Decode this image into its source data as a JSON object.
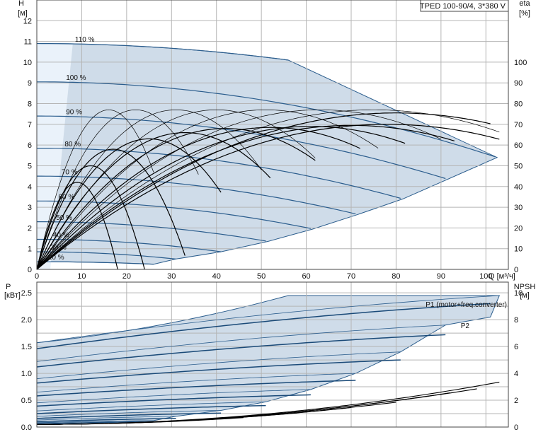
{
  "chart_data": [
    {
      "type": "line",
      "panel": "head",
      "title": "TPED 100-90/4, 3*380 V",
      "ylabel": "H",
      "yunit": "[м]",
      "y2label": "eta",
      "y2unit": "[%]",
      "xlabel": "Q [м³/ч]",
      "xlim": [
        0,
        105
      ],
      "ylim": [
        0,
        13
      ],
      "y2lim": [
        0,
        130
      ],
      "xticks": [
        "0",
        "10",
        "20",
        "30",
        "40",
        "50",
        "60",
        "70",
        "80",
        "90",
        "100"
      ],
      "yticks": [
        "0",
        "1",
        "2",
        "3",
        "4",
        "5",
        "6",
        "7",
        "8",
        "9",
        "10",
        "11",
        "12"
      ],
      "y2ticks": [
        "0",
        "10",
        "20",
        "30",
        "40",
        "50",
        "60",
        "70",
        "80",
        "90",
        "100"
      ],
      "grid": true,
      "envelope": {
        "qmax_at_110": 56,
        "qend": 102.5,
        "hend": 5.4
      },
      "speed_curves": [
        {
          "name": "110 %",
          "h0": 10.9,
          "qmax": 56,
          "hend": 10.1
        },
        {
          "name": "100 %",
          "h0": 9.05,
          "qmax": 102.5,
          "hend": 5.4
        },
        {
          "name": "90 %",
          "h0": 7.4,
          "qmax": 91.5,
          "hend": 4.35
        },
        {
          "name": "80 %",
          "h0": 5.85,
          "qmax": 81.5,
          "hend": 3.4
        },
        {
          "name": "70 %",
          "h0": 4.5,
          "qmax": 71.5,
          "hend": 2.65
        },
        {
          "name": "60 %",
          "h0": 3.3,
          "qmax": 61.5,
          "hend": 1.95
        },
        {
          "name": "50 %",
          "h0": 2.3,
          "qmax": 51.5,
          "hend": 1.35
        },
        {
          "name": "40 %",
          "h0": 1.45,
          "qmax": 41,
          "hend": 0.85
        },
        {
          "name": "30 %",
          "h0": 0.85,
          "qmax": 31,
          "hend": 0.5
        },
        {
          "name": "20 %",
          "h0": 0.37,
          "qmax": 26,
          "hend": 0.25
        }
      ],
      "efficiency_curves": [
        {
          "qbep": 16,
          "eta": 77,
          "qend": 26
        },
        {
          "qbep": 22,
          "eta": 77,
          "qend": 36
        },
        {
          "qbep": 31,
          "eta": 77,
          "qend": 50
        },
        {
          "qbep": 40,
          "eta": 77,
          "qend": 62
        },
        {
          "qbep": 51,
          "eta": 77,
          "qend": 76
        },
        {
          "qbep": 63,
          "eta": 77,
          "qend": 90
        },
        {
          "qbep": 75,
          "eta": 77,
          "qend": 103
        },
        {
          "qbep": 80,
          "eta": 75.5,
          "qend": 101
        },
        {
          "qbep": 78,
          "eta": 70,
          "qend": 103
        },
        {
          "qbep": 70,
          "eta": 69.5,
          "qend": 93
        },
        {
          "qbep": 61,
          "eta": 69,
          "qend": 82
        },
        {
          "qbep": 52,
          "eta": 68.5,
          "qend": 72
        },
        {
          "qbep": 42,
          "eta": 68,
          "qend": 62
        },
        {
          "qbep": 33,
          "eta": 66,
          "qend": 52
        },
        {
          "qbep": 25,
          "eta": 63,
          "qend": 41
        },
        {
          "qbep": 17,
          "eta": 58,
          "qend": 33
        },
        {
          "qbep": 12,
          "eta": 50,
          "qend": 26
        },
        {
          "qbep": 9,
          "eta": 42,
          "qend": 21
        }
      ]
    },
    {
      "type": "line",
      "panel": "power",
      "ylabel": "P",
      "yunit": "[кВт]",
      "y2label": "NPSH",
      "y2unit": "[м]",
      "xlim": [
        0,
        105
      ],
      "ylim": [
        0,
        2.7
      ],
      "y2lim": [
        0,
        10.8
      ],
      "yticks": [
        "0.0",
        "0.5",
        "1.0",
        "1.5",
        "2.0",
        "2.5"
      ],
      "y2ticks": [
        "0",
        "2",
        "4",
        "6",
        "8",
        "10"
      ],
      "grid": true,
      "legend": [
        "P1 (motor+freq.converter)",
        "P2"
      ],
      "p1_curves": [
        {
          "p0": 1.57,
          "pmax": 2.45,
          "qend": 103
        },
        {
          "p0": 1.22,
          "pmax": 1.9,
          "qend": 91
        },
        {
          "p0": 0.9,
          "pmax": 1.4,
          "qend": 81
        },
        {
          "p0": 0.65,
          "pmax": 1.0,
          "qend": 71
        },
        {
          "p0": 0.45,
          "pmax": 0.7,
          "qend": 61
        },
        {
          "p0": 0.3,
          "pmax": 0.47,
          "qend": 51
        },
        {
          "p0": 0.2,
          "pmax": 0.31,
          "qend": 41
        },
        {
          "p0": 0.13,
          "pmax": 0.2,
          "qend": 31
        },
        {
          "p0": 0.08,
          "pmax": 0.12,
          "qend": 26
        }
      ],
      "p2_curves": [
        {
          "p0": 1.46,
          "pmax": 2.3,
          "qend": 101
        },
        {
          "p0": 1.12,
          "pmax": 1.72,
          "qend": 91
        },
        {
          "p0": 0.82,
          "pmax": 1.25,
          "qend": 81
        },
        {
          "p0": 0.58,
          "pmax": 0.87,
          "qend": 71
        },
        {
          "p0": 0.39,
          "pmax": 0.6,
          "qend": 61
        },
        {
          "p0": 0.25,
          "pmax": 0.4,
          "qend": 51
        },
        {
          "p0": 0.16,
          "pmax": 0.26,
          "qend": 41
        },
        {
          "p0": 0.1,
          "pmax": 0.16,
          "qend": 31
        },
        {
          "p0": 0.06,
          "pmax": 0.1,
          "qend": 26
        }
      ],
      "npsh_curves": [
        {
          "n0": 0.2,
          "nend": 3.35,
          "qend": 103
        },
        {
          "n0": 0.2,
          "nend": 2.85,
          "qend": 98
        },
        {
          "n0": 0.2,
          "nend": 2.55,
          "qend": 92
        },
        {
          "n0": 0.2,
          "nend": 1.85,
          "qend": 80
        },
        {
          "n0": 0.2,
          "nend": 1.45,
          "qend": 70
        },
        {
          "n0": 0.2,
          "nend": 1.05,
          "qend": 58
        },
        {
          "n0": 0.2,
          "nend": 0.7,
          "qend": 46
        }
      ]
    }
  ]
}
